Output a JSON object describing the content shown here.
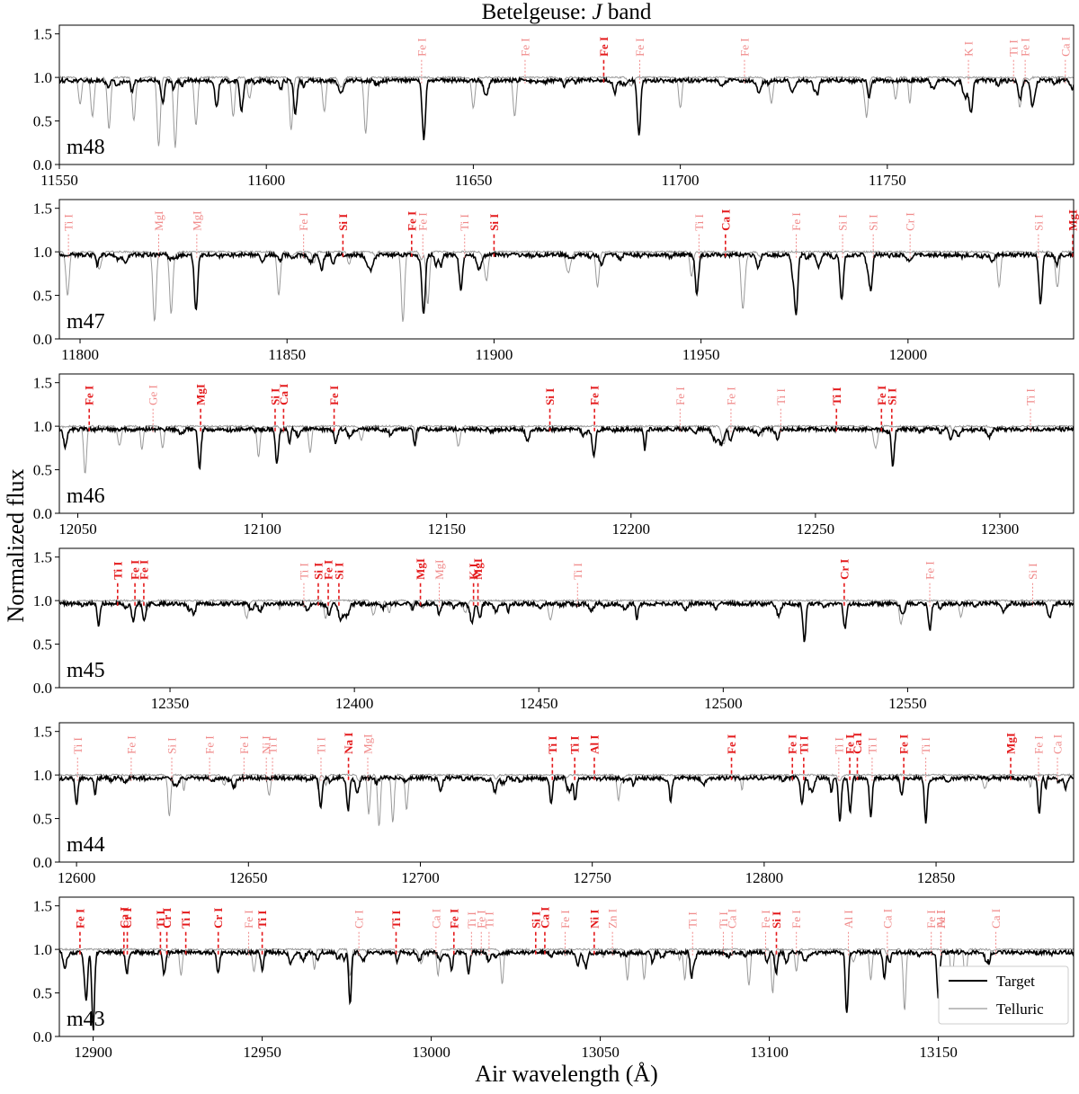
{
  "title_main": "Betelgeuse: ",
  "title_band": "J",
  "title_suffix": " band",
  "ylabel": "Normalized flux",
  "xlabel": "Air wavelength  (Å)",
  "legend": {
    "target": "Target",
    "telluric": "Telluric"
  },
  "colors": {
    "target": "#000000",
    "telluric": "#999999",
    "strong_line": "#e41a1c",
    "weak_line": "#f08a8a"
  },
  "chart_data": [
    {
      "type": "line",
      "order": "m48",
      "xlim": [
        11550,
        11795
      ],
      "ylim": [
        0.0,
        1.6
      ],
      "xticks": [
        11550,
        11600,
        11650,
        11700,
        11750
      ],
      "yticks": [
        0.0,
        0.5,
        1.0,
        1.5
      ],
      "lines": [
        {
          "w": 11637.5,
          "label": "Fe I",
          "strong": false
        },
        {
          "w": 11662.5,
          "label": "Fe I",
          "strong": false
        },
        {
          "w": 11681.5,
          "label": "Fe I",
          "strong": true
        },
        {
          "w": 11690.2,
          "label": "Fe I",
          "strong": false
        },
        {
          "w": 11715.5,
          "label": "Fe I",
          "strong": false
        },
        {
          "w": 11769.6,
          "label": "K  I",
          "strong": false
        },
        {
          "w": 11780.5,
          "label": "Ti I",
          "strong": false
        },
        {
          "w": 11783.3,
          "label": "Fe I",
          "strong": false
        },
        {
          "w": 11793.0,
          "label": "Ca I",
          "strong": false
        }
      ],
      "target_features": [
        [
          11575,
          0.25
        ],
        [
          11588,
          0.3
        ],
        [
          11594,
          0.35
        ],
        [
          11607,
          0.38
        ],
        [
          11638,
          0.6
        ],
        [
          11690,
          0.62
        ],
        [
          11770,
          0.25
        ],
        [
          11782,
          0.2
        ],
        [
          11785,
          0.3
        ]
      ],
      "telluric_features": [
        [
          11555,
          0.3
        ],
        [
          11558,
          0.45
        ],
        [
          11562,
          0.6
        ],
        [
          11568,
          0.5
        ],
        [
          11574,
          0.8
        ],
        [
          11578,
          0.8
        ],
        [
          11583,
          0.55
        ],
        [
          11592,
          0.45
        ],
        [
          11606,
          0.6
        ],
        [
          11614,
          0.4
        ],
        [
          11624,
          0.65
        ],
        [
          11650,
          0.35
        ],
        [
          11660,
          0.45
        ],
        [
          11700,
          0.35
        ],
        [
          11722,
          0.3
        ],
        [
          11745,
          0.4
        ],
        [
          11752,
          0.25
        ],
        [
          11782,
          0.35
        ]
      ]
    },
    {
      "type": "line",
      "order": "m47",
      "xlim": [
        11795,
        12040
      ],
      "ylim": [
        0.0,
        1.6
      ],
      "xticks": [
        11800,
        11850,
        11900,
        11950,
        12000
      ],
      "yticks": [
        0.0,
        0.5,
        1.0,
        1.5
      ],
      "lines": [
        {
          "w": 11797.2,
          "label": "Ti I",
          "strong": false
        },
        {
          "w": 11819.0,
          "label": "MgI",
          "strong": false
        },
        {
          "w": 11828.2,
          "label": "MgI",
          "strong": false
        },
        {
          "w": 11854.0,
          "label": "Fe I",
          "strong": false
        },
        {
          "w": 11863.5,
          "label": "Si I",
          "strong": true
        },
        {
          "w": 11880.1,
          "label": "Fe I",
          "strong": true
        },
        {
          "w": 11882.8,
          "label": "Fe I",
          "strong": false
        },
        {
          "w": 11892.9,
          "label": "Ti I",
          "strong": false
        },
        {
          "w": 11900.0,
          "label": "Si I",
          "strong": true
        },
        {
          "w": 11949.5,
          "label": "Ti I",
          "strong": false
        },
        {
          "w": 11955.9,
          "label": "Ca I",
          "strong": true
        },
        {
          "w": 11973.0,
          "label": "Fe I",
          "strong": false
        },
        {
          "w": 11984.2,
          "label": "Si I",
          "strong": false
        },
        {
          "w": 11991.6,
          "label": "Si I",
          "strong": false
        },
        {
          "w": 12000.5,
          "label": "Cr I",
          "strong": false
        },
        {
          "w": 12031.5,
          "label": "Si I",
          "strong": false
        },
        {
          "w": 12039.8,
          "label": "MgI",
          "strong": true
        }
      ],
      "target_features": [
        [
          11828,
          0.65
        ],
        [
          11883,
          0.62
        ],
        [
          11892,
          0.4
        ],
        [
          11949,
          0.45
        ],
        [
          11973,
          0.65
        ],
        [
          11984,
          0.5
        ],
        [
          11991,
          0.4
        ],
        [
          12032,
          0.55
        ]
      ],
      "telluric_features": [
        [
          11797,
          0.5
        ],
        [
          11818,
          0.8
        ],
        [
          11822,
          0.7
        ],
        [
          11848,
          0.5
        ],
        [
          11878,
          0.8
        ],
        [
          11884,
          0.6
        ],
        [
          11925,
          0.4
        ],
        [
          11960,
          0.4
        ],
        [
          12022,
          0.4
        ],
        [
          12036,
          0.35
        ]
      ]
    },
    {
      "type": "line",
      "order": "m46",
      "xlim": [
        12045,
        12320
      ],
      "ylim": [
        0.0,
        1.6
      ],
      "xticks": [
        12050,
        12100,
        12150,
        12200,
        12250,
        12300
      ],
      "yticks": [
        0.0,
        0.5,
        1.0,
        1.5
      ],
      "lines": [
        {
          "w": 12053.1,
          "label": "Fe I",
          "strong": true
        },
        {
          "w": 12070.4,
          "label": "Ge I",
          "strong": false
        },
        {
          "w": 12083.3,
          "label": "MgI",
          "strong": true
        },
        {
          "w": 12103.5,
          "label": "Si I",
          "strong": true
        },
        {
          "w": 12105.8,
          "label": "Ca I",
          "strong": true
        },
        {
          "w": 12119.5,
          "label": "Fe I",
          "strong": true
        },
        {
          "w": 12178.0,
          "label": "Si I",
          "strong": true
        },
        {
          "w": 12190.1,
          "label": "Fe I",
          "strong": true
        },
        {
          "w": 12213.3,
          "label": "Fe I",
          "strong": false
        },
        {
          "w": 12227.1,
          "label": "Fe I",
          "strong": false
        },
        {
          "w": 12240.6,
          "label": "Ti I",
          "strong": false
        },
        {
          "w": 12255.7,
          "label": "Ti I",
          "strong": true
        },
        {
          "w": 12267.9,
          "label": "Fe I",
          "strong": true
        },
        {
          "w": 12270.7,
          "label": "Si I",
          "strong": true
        },
        {
          "w": 12308.3,
          "label": "Ti I",
          "strong": false
        }
      ],
      "target_features": [
        [
          12083,
          0.45
        ],
        [
          12104,
          0.4
        ],
        [
          12120,
          0.15
        ],
        [
          12190,
          0.22
        ],
        [
          12227,
          0.15
        ],
        [
          12271,
          0.42
        ]
      ],
      "telluric_features": [
        [
          12052,
          0.55
        ],
        [
          12073,
          0.25
        ],
        [
          12099,
          0.35
        ],
        [
          12113,
          0.3
        ]
      ]
    },
    {
      "type": "line",
      "order": "m45",
      "xlim": [
        12320,
        12595
      ],
      "ylim": [
        0.0,
        1.6
      ],
      "xticks": [
        12350,
        12400,
        12450,
        12500,
        12550
      ],
      "yticks": [
        0.0,
        0.5,
        1.0,
        1.5
      ],
      "lines": [
        {
          "w": 12335.8,
          "label": "Ti I",
          "strong": true
        },
        {
          "w": 12340.5,
          "label": "Fe I",
          "strong": true
        },
        {
          "w": 12342.9,
          "label": "Fe I",
          "strong": true
        },
        {
          "w": 12386.3,
          "label": "Ti I",
          "strong": false
        },
        {
          "w": 12390.2,
          "label": "Si I",
          "strong": true
        },
        {
          "w": 12392.9,
          "label": "Fe I",
          "strong": true
        },
        {
          "w": 12395.8,
          "label": "Si I",
          "strong": true
        },
        {
          "w": 12417.9,
          "label": "MgI",
          "strong": true
        },
        {
          "w": 12423.0,
          "label": "MgI",
          "strong": false
        },
        {
          "w": 12432.3,
          "label": "K  I",
          "strong": true
        },
        {
          "w": 12433.5,
          "label": "MgI",
          "strong": true
        },
        {
          "w": 12460.5,
          "label": "Ti I",
          "strong": false
        },
        {
          "w": 12532.8,
          "label": "Cr I",
          "strong": true
        },
        {
          "w": 12556.0,
          "label": "Fe I",
          "strong": false
        },
        {
          "w": 12583.9,
          "label": "Si I",
          "strong": false
        }
      ],
      "target_features": [
        [
          12340,
          0.2
        ],
        [
          12343,
          0.2
        ],
        [
          12396,
          0.15
        ],
        [
          12423,
          0.12
        ],
        [
          12432,
          0.15
        ],
        [
          12434,
          0.18
        ],
        [
          12522,
          0.42
        ],
        [
          12533,
          0.28
        ],
        [
          12556,
          0.3
        ]
      ],
      "telluric_features": []
    },
    {
      "type": "line",
      "order": "m44",
      "xlim": [
        12595,
        12890
      ],
      "ylim": [
        0.0,
        1.6
      ],
      "xticks": [
        12600,
        12650,
        12700,
        12750,
        12800,
        12850
      ],
      "yticks": [
        0.0,
        0.5,
        1.0,
        1.5
      ],
      "lines": [
        {
          "w": 12600.3,
          "label": "Ti I",
          "strong": false
        },
        {
          "w": 12615.9,
          "label": "Fe I",
          "strong": false
        },
        {
          "w": 12627.7,
          "label": "Si I",
          "strong": false
        },
        {
          "w": 12638.7,
          "label": "Fe I",
          "strong": false
        },
        {
          "w": 12648.7,
          "label": "Fe I",
          "strong": false
        },
        {
          "w": 12655.2,
          "label": "Ni I",
          "strong": false
        },
        {
          "w": 12657.0,
          "label": "Ti I",
          "strong": false
        },
        {
          "w": 12671.1,
          "label": "Ti I",
          "strong": false
        },
        {
          "w": 12679.1,
          "label": "Na I",
          "strong": true
        },
        {
          "w": 12684.7,
          "label": "MgI",
          "strong": false
        },
        {
          "w": 12738.4,
          "label": "Ti I",
          "strong": true
        },
        {
          "w": 12744.9,
          "label": "Ti I",
          "strong": true
        },
        {
          "w": 12750.6,
          "label": "Al I",
          "strong": true
        },
        {
          "w": 12790.5,
          "label": "Fe I",
          "strong": true
        },
        {
          "w": 12808.2,
          "label": "Fe I",
          "strong": true
        },
        {
          "w": 12811.5,
          "label": "Ti I",
          "strong": true
        },
        {
          "w": 12821.7,
          "label": "Ti I",
          "strong": false
        },
        {
          "w": 12824.9,
          "label": "Fe I",
          "strong": true
        },
        {
          "w": 12827.1,
          "label": "Ca I",
          "strong": true
        },
        {
          "w": 12831.4,
          "label": "Ti I",
          "strong": false
        },
        {
          "w": 12840.6,
          "label": "Fe I",
          "strong": true
        },
        {
          "w": 12847.0,
          "label": "Ti I",
          "strong": false
        },
        {
          "w": 12871.7,
          "label": "MgI",
          "strong": true
        },
        {
          "w": 12879.8,
          "label": "Fe I",
          "strong": false
        },
        {
          "w": 12885.3,
          "label": "Ca I",
          "strong": false
        }
      ],
      "target_features": [
        [
          12600,
          0.3
        ],
        [
          12671,
          0.35
        ],
        [
          12679,
          0.38
        ],
        [
          12738,
          0.3
        ],
        [
          12745,
          0.25
        ],
        [
          12811,
          0.3
        ],
        [
          12822,
          0.5
        ],
        [
          12825,
          0.4
        ],
        [
          12831,
          0.45
        ],
        [
          12840,
          0.2
        ],
        [
          12847,
          0.5
        ],
        [
          12880,
          0.4
        ]
      ],
      "telluric_features": [
        [
          12627,
          0.42
        ],
        [
          12685,
          0.45
        ],
        [
          12688,
          0.6
        ],
        [
          12692,
          0.55
        ],
        [
          12696,
          0.4
        ]
      ]
    },
    {
      "type": "line",
      "order": "m43",
      "xlim": [
        12890,
        13190
      ],
      "ylim": [
        0.0,
        1.6
      ],
      "xticks": [
        12900,
        12950,
        13000,
        13050,
        13100,
        13150
      ],
      "yticks": [
        0.0,
        0.5,
        1.0,
        1.5
      ],
      "lines": [
        {
          "w": 12896.1,
          "label": "Fe I",
          "strong": true
        },
        {
          "w": 12909.1,
          "label": "Ca I",
          "strong": true
        },
        {
          "w": 12910.1,
          "label": "Cr I",
          "strong": true
        },
        {
          "w": 12919.9,
          "label": "Ti I",
          "strong": true
        },
        {
          "w": 12921.8,
          "label": "Cr I",
          "strong": true
        },
        {
          "w": 12927.4,
          "label": "Ti I",
          "strong": true
        },
        {
          "w": 12937.0,
          "label": "Cr I",
          "strong": true
        },
        {
          "w": 12946.0,
          "label": "Fe I",
          "strong": false
        },
        {
          "w": 12950.0,
          "label": "Ti I",
          "strong": true
        },
        {
          "w": 12978.6,
          "label": "Cr I",
          "strong": false
        },
        {
          "w": 12989.6,
          "label": "Ti I",
          "strong": true
        },
        {
          "w": 13001.4,
          "label": "Ca I",
          "strong": false
        },
        {
          "w": 13006.7,
          "label": "Fe I",
          "strong": true
        },
        {
          "w": 13011.9,
          "label": "Ti I",
          "strong": false
        },
        {
          "w": 13014.8,
          "label": "Fe I",
          "strong": false
        },
        {
          "w": 13017.1,
          "label": "Ti I",
          "strong": false
        },
        {
          "w": 13030.9,
          "label": "Si I",
          "strong": true
        },
        {
          "w": 13033.6,
          "label": "Ca I",
          "strong": true
        },
        {
          "w": 13039.6,
          "label": "Fe I",
          "strong": false
        },
        {
          "w": 13048.2,
          "label": "Ni I",
          "strong": true
        },
        {
          "w": 13053.6,
          "label": "Zn I",
          "strong": false
        },
        {
          "w": 13077.3,
          "label": "Ti I",
          "strong": false
        },
        {
          "w": 13086.4,
          "label": "Ti I",
          "strong": false
        },
        {
          "w": 13089.0,
          "label": "Ca I",
          "strong": false
        },
        {
          "w": 13098.9,
          "label": "Fe I",
          "strong": false
        },
        {
          "w": 13102.1,
          "label": "Si I",
          "strong": true
        },
        {
          "w": 13108.0,
          "label": "Fe I",
          "strong": false
        },
        {
          "w": 13123.4,
          "label": "Al I",
          "strong": false
        },
        {
          "w": 13134.9,
          "label": "Ca I",
          "strong": false
        },
        {
          "w": 13147.9,
          "label": "Fe I",
          "strong": false
        },
        {
          "w": 13150.8,
          "label": "Fe I",
          "strong": false
        },
        {
          "w": 13150.7,
          "label": "Al I",
          "strong": false
        },
        {
          "w": 13167.0,
          "label": "Ca I",
          "strong": false
        }
      ],
      "target_features": [
        [
          12898,
          0.5
        ],
        [
          12900,
          0.9
        ],
        [
          12910,
          0.25
        ],
        [
          12921,
          0.25
        ],
        [
          12937,
          0.25
        ],
        [
          12950,
          0.2
        ],
        [
          12976,
          0.6
        ],
        [
          13006,
          0.2
        ],
        [
          13011,
          0.25
        ],
        [
          13077,
          0.3
        ],
        [
          13102,
          0.25
        ],
        [
          13123,
          0.6
        ],
        [
          13134,
          0.3
        ],
        [
          13150,
          0.55
        ]
      ],
      "telluric_features": [
        [
          12926,
          0.3
        ],
        [
          12976,
          0.3
        ],
        [
          13002,
          0.3
        ],
        [
          13021,
          0.4
        ],
        [
          13058,
          0.35
        ],
        [
          13063,
          0.35
        ],
        [
          13075,
          0.35
        ],
        [
          13094,
          0.4
        ],
        [
          13101,
          0.5
        ],
        [
          13108,
          0.25
        ],
        [
          13130,
          0.35
        ],
        [
          13140,
          0.7
        ],
        [
          13154,
          0.4
        ],
        [
          13158,
          0.4
        ]
      ]
    }
  ]
}
